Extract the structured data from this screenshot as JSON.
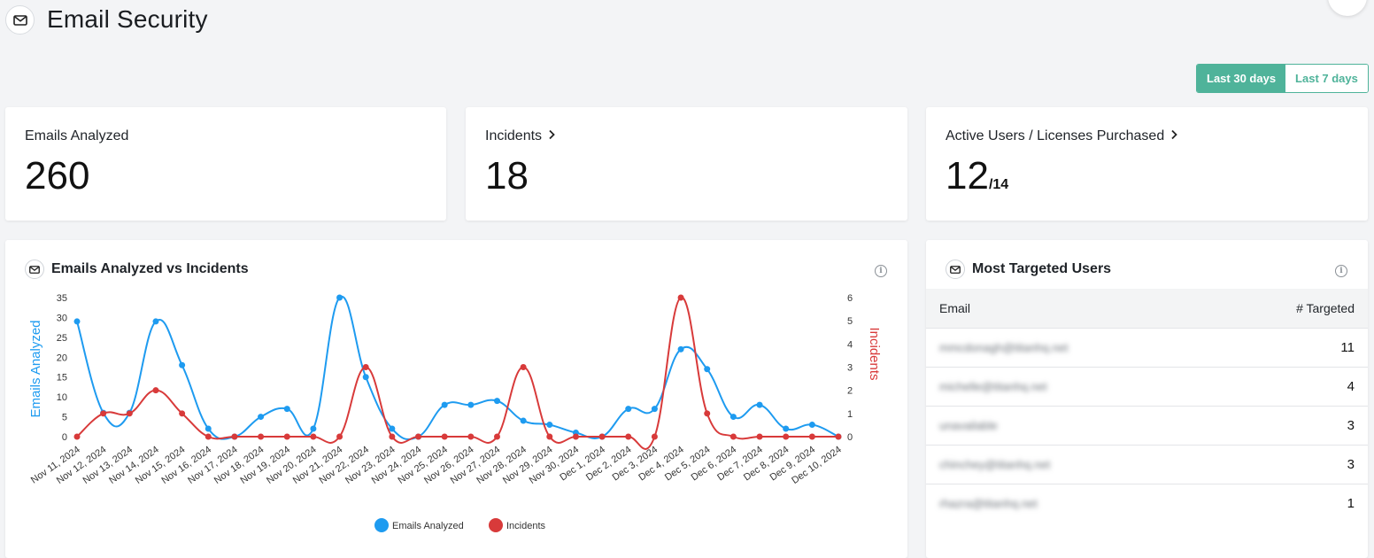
{
  "header": {
    "title": "Email Security",
    "icon": "envelope-icon"
  },
  "range": {
    "active_label": "Last 30 days",
    "inactive_label": "Last 7 days",
    "accent": "#4fb39a"
  },
  "stats": {
    "emails_analyzed": {
      "label": "Emails Analyzed",
      "value": "260"
    },
    "incidents": {
      "label": "Incidents",
      "value": "18"
    },
    "active_users": {
      "label": "Active Users / Licenses Purchased",
      "value": "12",
      "sub": "/14"
    }
  },
  "chart_panel": {
    "title": "Emails Analyzed vs Incidents"
  },
  "chart_data": {
    "type": "line",
    "categories": [
      "Nov 11, 2024",
      "Nov 12, 2024",
      "Nov 13, 2024",
      "Nov 14, 2024",
      "Nov 15, 2024",
      "Nov 16, 2024",
      "Nov 17, 2024",
      "Nov 18, 2024",
      "Nov 19, 2024",
      "Nov 20, 2024",
      "Nov 21, 2024",
      "Nov 22, 2024",
      "Nov 23, 2024",
      "Nov 24, 2024",
      "Nov 25, 2024",
      "Nov 26, 2024",
      "Nov 27, 2024",
      "Nov 28, 2024",
      "Nov 29, 2024",
      "Nov 30, 2024",
      "Dec 1, 2024",
      "Dec 2, 2024",
      "Dec 3, 2024",
      "Dec 4, 2024",
      "Dec 5, 2024",
      "Dec 6, 2024",
      "Dec 7, 2024",
      "Dec 8, 2024",
      "Dec 9, 2024",
      "Dec 10, 2024"
    ],
    "series": [
      {
        "name": "Emails Analyzed",
        "axis": "left",
        "color": "#1e9bf0",
        "values": [
          29,
          6,
          6,
          29,
          18,
          2,
          0,
          5,
          7,
          2,
          35,
          15,
          2,
          0,
          8,
          8,
          9,
          4,
          3,
          1,
          0,
          7,
          7,
          22,
          17,
          5,
          8,
          2,
          3,
          0
        ]
      },
      {
        "name": "Incidents",
        "axis": "right",
        "color": "#d83a3a",
        "values": [
          0,
          1,
          1,
          2,
          1,
          0,
          0,
          0,
          0,
          0,
          0,
          3,
          0,
          0,
          0,
          0,
          0,
          3,
          0,
          0,
          0,
          0,
          0,
          6,
          1,
          0,
          0,
          0,
          0,
          0
        ]
      }
    ],
    "ylabel": "Emails Analyzed",
    "y2label": "Incidents",
    "ylim": [
      0,
      35
    ],
    "y2lim": [
      0,
      6
    ],
    "yticks": [
      0,
      5,
      10,
      15,
      20,
      25,
      30,
      35
    ],
    "y2ticks": [
      0,
      1,
      2,
      3,
      4,
      5,
      6
    ],
    "grid": false,
    "legend": "bottom-center"
  },
  "targets": {
    "title": "Most Targeted Users",
    "col_email": "Email",
    "col_count": "# Targeted",
    "rows": [
      {
        "email": "mmcdonagh@titanhq.net",
        "count": "11"
      },
      {
        "email": "michelle@titanhq.net",
        "count": "4"
      },
      {
        "email": "unavailable",
        "count": "3"
      },
      {
        "email": "chinchey@titanhq.net",
        "count": "3"
      },
      {
        "email": "rhazra@titanhq.net",
        "count": "1"
      }
    ]
  }
}
